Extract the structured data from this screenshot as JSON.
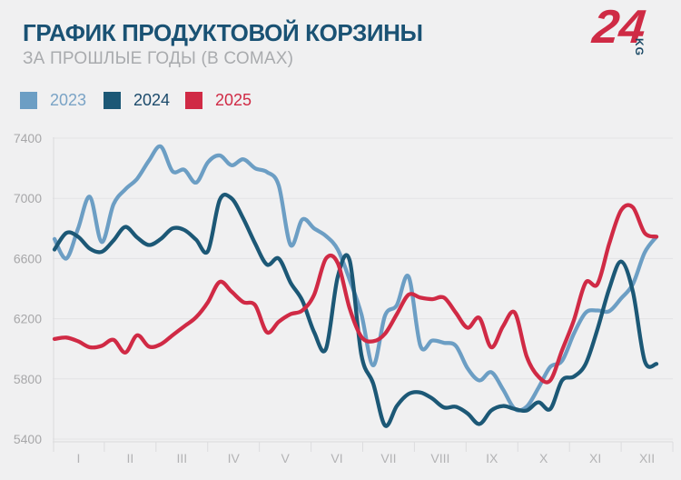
{
  "header": {
    "title": "ГРАФИК ПРОДУКТОВОЙ КОРЗИНЫ",
    "subtitle": "ЗА ПРОШЛЫЕ ГОДЫ (В СОМАХ)",
    "logo": {
      "number": "24",
      "suffix": "KG"
    }
  },
  "colors": {
    "background": "#f0f0f1",
    "title": "#1a5274",
    "subtitle": "#a9abae",
    "gridline": "#e3e3e5",
    "axis_line": "#dadadc",
    "tick": "#dcdcde",
    "y_label": "#a7a7a9",
    "x_label": "#b3b3b5",
    "logo_red": "#cf2b45",
    "logo_dark": "#1b4965"
  },
  "legend": [
    {
      "label": "2023",
      "color": "#6c9ec4",
      "text_color": "#7aa3c6",
      "x": 0
    },
    {
      "label": "2024",
      "color": "#1c5876",
      "text_color": "#1b4a6b",
      "x": 92
    },
    {
      "label": "2025",
      "color": "#d02a45",
      "text_color": "#d02a45",
      "x": 182
    }
  ],
  "chart_data": {
    "type": "line",
    "title": "ГРАФИК ПРОДУКТОВОЙ КОРЗИНЫ",
    "subtitle": "ЗА ПРОШЛЫЕ ГОДЫ (В СОМАХ)",
    "unit": "som",
    "x_unit": "weeks of year (52 points, January–December)",
    "x_axis_labels": [
      "I",
      "II",
      "III",
      "IV",
      "V",
      "VI",
      "VII",
      "VIII",
      "IX",
      "X",
      "XI",
      "XII"
    ],
    "y_ticks": [
      7400,
      7000,
      6600,
      6200,
      5800,
      5400
    ],
    "ylim": [
      5400,
      7400
    ],
    "grid": true,
    "legend_position": "top-left",
    "series": [
      {
        "name": "2023",
        "color": "#6c9ec4",
        "values": [
          6730,
          6600,
          6800,
          7010,
          6710,
          6960,
          7060,
          7130,
          7250,
          7345,
          7180,
          7190,
          7105,
          7240,
          7285,
          7220,
          7260,
          7200,
          7175,
          7085,
          6690,
          6860,
          6800,
          6750,
          6660,
          6460,
          6230,
          5890,
          6220,
          6290,
          6480,
          6020,
          6055,
          6040,
          6020,
          5870,
          5790,
          5845,
          5730,
          5600,
          5615,
          5740,
          5880,
          5920,
          6100,
          6240,
          6255,
          6250,
          6335,
          6430,
          6640,
          6745
        ]
      },
      {
        "name": "2024",
        "color": "#1c5876",
        "values": [
          6660,
          6770,
          6745,
          6665,
          6645,
          6720,
          6810,
          6740,
          6690,
          6730,
          6800,
          6790,
          6725,
          6650,
          6990,
          7000,
          6865,
          6700,
          6560,
          6600,
          6440,
          6320,
          6110,
          6000,
          6480,
          6590,
          5960,
          5770,
          5490,
          5620,
          5700,
          5710,
          5670,
          5610,
          5615,
          5570,
          5500,
          5590,
          5620,
          5600,
          5590,
          5645,
          5600,
          5790,
          5815,
          5900,
          6130,
          6400,
          6580,
          6380,
          5920,
          5900
        ]
      },
      {
        "name": "2025",
        "color": "#d02a45",
        "values": [
          6065,
          6075,
          6050,
          6010,
          6020,
          6060,
          5975,
          6090,
          6015,
          6030,
          6090,
          6150,
          6210,
          6310,
          6445,
          6380,
          6310,
          6290,
          6110,
          6180,
          6230,
          6255,
          6360,
          6600,
          6570,
          6270,
          6080,
          6050,
          6100,
          6230,
          6360,
          6340,
          6330,
          6340,
          6240,
          6140,
          6205,
          6010,
          6150,
          6240,
          5950,
          5815,
          5790,
          5990,
          6190,
          6440,
          6430,
          6700,
          6920,
          6940,
          6770,
          6745
        ]
      }
    ]
  }
}
